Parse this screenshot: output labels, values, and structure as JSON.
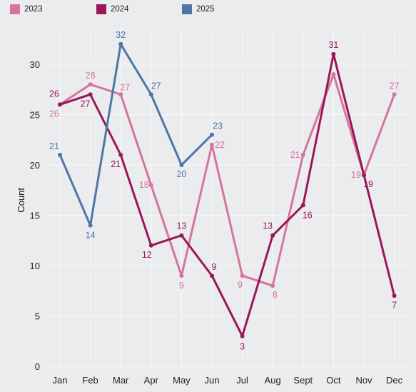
{
  "chart_data": {
    "type": "line",
    "categories": [
      "Jan",
      "Feb",
      "Mar",
      "Apr",
      "May",
      "Jun",
      "Jul",
      "Aug",
      "Sept",
      "Oct",
      "Nov",
      "Dec"
    ],
    "series": [
      {
        "name": "2023",
        "color": "#d6749b",
        "values": [
          26,
          28,
          27,
          18,
          9,
          22,
          9,
          8,
          21,
          29,
          19,
          27
        ],
        "labeled": [
          true,
          true,
          true,
          true,
          true,
          true,
          true,
          true,
          true,
          false,
          true,
          true
        ]
      },
      {
        "name": "2024",
        "color": "#99175a",
        "values": [
          26,
          27,
          21,
          12,
          13,
          9,
          3,
          13,
          16,
          31,
          19,
          7
        ],
        "labeled": [
          true,
          true,
          true,
          true,
          true,
          true,
          true,
          true,
          true,
          true,
          true,
          true
        ]
      },
      {
        "name": "2025",
        "color": "#4e76a6",
        "values": [
          21,
          14,
          32,
          27,
          20,
          23,
          null,
          null,
          null,
          null,
          null,
          null
        ],
        "labeled": [
          true,
          true,
          true,
          true,
          true,
          true,
          false,
          false,
          false,
          false,
          false,
          false
        ]
      }
    ],
    "ylabel": "Count",
    "xlabel": "",
    "title": "",
    "ylim": [
      0,
      33
    ],
    "yticks": [
      0,
      5,
      10,
      15,
      20,
      25,
      30
    ],
    "grid": true,
    "legend_position": "top-left"
  }
}
